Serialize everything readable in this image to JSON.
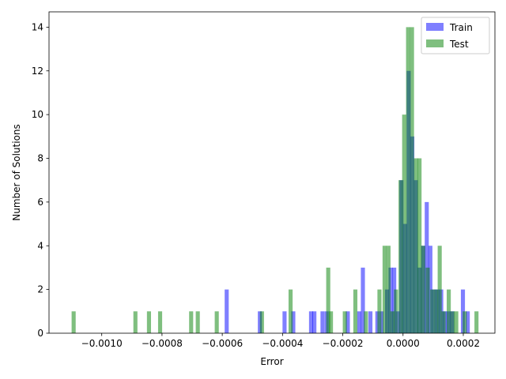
{
  "chart_data": {
    "type": "bar",
    "title": "",
    "xlabel": "Error",
    "ylabel": "Number of Solutions",
    "xlim": [
      -0.001175,
      0.000305
    ],
    "ylim": [
      0,
      14.7
    ],
    "grid": false,
    "legend_position": "top-right",
    "bin_width": 1.35e-05,
    "x_ticks": [
      {
        "value": -0.001,
        "label": "−0.0010"
      },
      {
        "value": -0.0008,
        "label": "−0.0008"
      },
      {
        "value": -0.0006,
        "label": "−0.0006"
      },
      {
        "value": -0.0004,
        "label": "−0.0004"
      },
      {
        "value": -0.0002,
        "label": "−0.0002"
      },
      {
        "value": 0.0,
        "label": "0.0000"
      },
      {
        "value": 0.0002,
        "label": "0.0002"
      }
    ],
    "y_ticks": [
      0,
      2,
      4,
      6,
      8,
      10,
      12,
      14
    ],
    "series": [
      {
        "name": "Train",
        "color": "#0000ff",
        "opacity": 0.5,
        "bins": [
          {
            "x": -0.000592,
            "count": 2
          },
          {
            "x": -0.000482,
            "count": 1
          },
          {
            "x": -0.0004,
            "count": 1
          },
          {
            "x": -0.000371,
            "count": 1
          },
          {
            "x": -0.000312,
            "count": 1
          },
          {
            "x": -0.000301,
            "count": 1
          },
          {
            "x": -0.000274,
            "count": 1
          },
          {
            "x": -0.00026,
            "count": 1
          },
          {
            "x": -0.00019,
            "count": 1
          },
          {
            "x": -0.000152,
            "count": 1
          },
          {
            "x": -0.00014,
            "count": 3
          },
          {
            "x": -0.000115,
            "count": 1
          },
          {
            "x": -9.2e-05,
            "count": 1
          },
          {
            "x": -7.8e-05,
            "count": 1
          },
          {
            "x": -6e-05,
            "count": 2
          },
          {
            "x": -4.8e-05,
            "count": 3
          },
          {
            "x": -3.6e-05,
            "count": 3
          },
          {
            "x": -2.4e-05,
            "count": 1
          },
          {
            "x": -1.2e-05,
            "count": 7
          },
          {
            "x": 0.0,
            "count": 5
          },
          {
            "x": 1.2e-05,
            "count": 12
          },
          {
            "x": 2.4e-05,
            "count": 9
          },
          {
            "x": 3.6e-05,
            "count": 7
          },
          {
            "x": 4.8e-05,
            "count": 3
          },
          {
            "x": 6e-05,
            "count": 4
          },
          {
            "x": 7.2e-05,
            "count": 6
          },
          {
            "x": 8.4e-05,
            "count": 4
          },
          {
            "x": 9.6e-05,
            "count": 2
          },
          {
            "x": 0.000108,
            "count": 2
          },
          {
            "x": 0.00012,
            "count": 2
          },
          {
            "x": 0.000132,
            "count": 1
          },
          {
            "x": 0.000144,
            "count": 1
          },
          {
            "x": 0.000156,
            "count": 1
          },
          {
            "x": 0.000192,
            "count": 2
          },
          {
            "x": 0.000208,
            "count": 1
          }
        ]
      },
      {
        "name": "Test",
        "color": "#008000",
        "opacity": 0.5,
        "bins": [
          {
            "x": -0.0011,
            "count": 1
          },
          {
            "x": -0.000895,
            "count": 1
          },
          {
            "x": -0.00085,
            "count": 1
          },
          {
            "x": -0.000813,
            "count": 1
          },
          {
            "x": -0.00071,
            "count": 1
          },
          {
            "x": -0.000688,
            "count": 1
          },
          {
            "x": -0.000625,
            "count": 1
          },
          {
            "x": -0.000475,
            "count": 1
          },
          {
            "x": -0.00038,
            "count": 2
          },
          {
            "x": -0.000255,
            "count": 3
          },
          {
            "x": -0.000246,
            "count": 1
          },
          {
            "x": -0.0002,
            "count": 1
          },
          {
            "x": -0.000165,
            "count": 2
          },
          {
            "x": -0.00013,
            "count": 1
          },
          {
            "x": -8.5e-05,
            "count": 2
          },
          {
            "x": -6.8e-05,
            "count": 4
          },
          {
            "x": -5.5e-05,
            "count": 4
          },
          {
            "x": -4.2e-05,
            "count": 1
          },
          {
            "x": -3e-05,
            "count": 2
          },
          {
            "x": -1.5e-05,
            "count": 7
          },
          {
            "x": -3e-06,
            "count": 10
          },
          {
            "x": 1e-05,
            "count": 14
          },
          {
            "x": 2.3e-05,
            "count": 14
          },
          {
            "x": 3.6e-05,
            "count": 8
          },
          {
            "x": 4.8e-05,
            "count": 8
          },
          {
            "x": 6e-05,
            "count": 4
          },
          {
            "x": 7.5e-05,
            "count": 3
          },
          {
            "x": 9e-05,
            "count": 2
          },
          {
            "x": 0.000103,
            "count": 2
          },
          {
            "x": 0.000115,
            "count": 4
          },
          {
            "x": 0.000128,
            "count": 1
          },
          {
            "x": 0.000145,
            "count": 2
          },
          {
            "x": 0.000158,
            "count": 1
          },
          {
            "x": 0.00017,
            "count": 1
          },
          {
            "x": 0.000198,
            "count": 1
          },
          {
            "x": 0.000237,
            "count": 1
          }
        ]
      }
    ]
  }
}
